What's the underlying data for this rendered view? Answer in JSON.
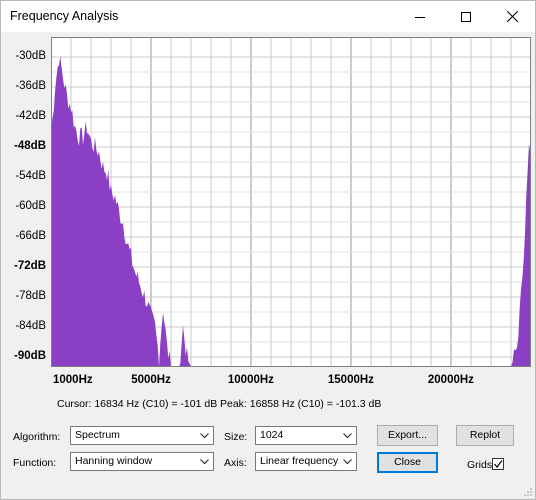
{
  "window": {
    "title": "Frequency Analysis"
  },
  "controls": {
    "algorithm_label": "Algorithm:",
    "algorithm_value": "Spectrum",
    "function_label": "Function:",
    "function_value": "Hanning window",
    "size_label": "Size:",
    "size_value": "1024",
    "axis_label": "Axis:",
    "axis_value": "Linear frequency",
    "export_label": "Export...",
    "replot_label": "Replot",
    "close_label": "Close",
    "grids_label": "Grids",
    "grids_checked": true
  },
  "status": {
    "cursor": "Cursor: 16834 Hz (C10) = -101 dB",
    "peak": "Peak: 16858 Hz (C10) = -101.3 dB"
  },
  "chart_data": {
    "type": "area",
    "y_ticks": [
      "-30dB",
      "-36dB",
      "-42dB",
      "-48dB",
      "-54dB",
      "-60dB",
      "-66dB",
      "-72dB",
      "-78dB",
      "-84dB",
      "-90dB"
    ],
    "y_bold": [
      "-48dB",
      "-72dB",
      "-90dB"
    ],
    "x_ticks": [
      "1000Hz",
      "5000Hz",
      "10000Hz",
      "15000Hz",
      "20000Hz"
    ],
    "xlim": [
      0,
      24000
    ],
    "ylim": [
      -92,
      -26
    ],
    "grid": true,
    "fill_color": "#8a3fc4",
    "x": [
      0,
      200,
      400,
      600,
      800,
      1000,
      1200,
      1400,
      1600,
      1800,
      2000,
      2200,
      2400,
      2600,
      2800,
      3000,
      3200,
      3400,
      3600,
      3800,
      4000,
      4200,
      4400,
      4600,
      4800,
      5000,
      5200,
      5400,
      5600,
      5800,
      6000,
      6200,
      6400,
      6600,
      6800,
      7000,
      7200,
      7400,
      7600,
      7800,
      8000,
      9000,
      10000,
      12000,
      14000,
      16000,
      18000,
      20000,
      22000,
      23000,
      23300,
      23500,
      23700,
      23900,
      24000
    ],
    "y": [
      -46,
      -36,
      -30,
      -34,
      -38,
      -40,
      -44,
      -46,
      -46,
      -44,
      -47,
      -48,
      -49,
      -52,
      -53,
      -57,
      -58,
      -61,
      -63,
      -67,
      -70,
      -73,
      -75,
      -77,
      -79,
      -82,
      -84,
      -90,
      -80,
      -88,
      -92,
      -92,
      -92,
      -84,
      -90,
      -92,
      -92,
      -92,
      -92,
      -92,
      -92,
      -92,
      -92,
      -92,
      -92,
      -92,
      -92,
      -92,
      -92,
      -92,
      -88,
      -78,
      -64,
      -48,
      -50
    ]
  }
}
